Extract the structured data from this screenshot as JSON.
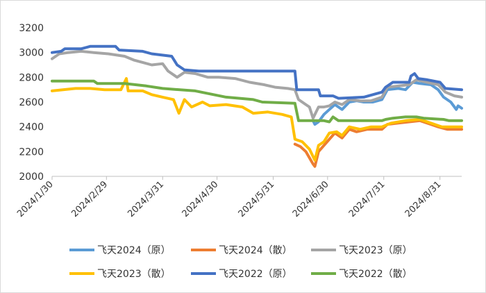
{
  "chart_data": {
    "type": "line",
    "title": "",
    "xlabel": "",
    "ylabel": "",
    "ylim": [
      2000,
      3200
    ],
    "y_ticks": [
      2000,
      2200,
      2400,
      2600,
      2800,
      3000,
      3200
    ],
    "x_ticks": [
      "2024/1/30",
      "2024/2/29",
      "2024/3/31",
      "2024/4/30",
      "2024/5/31",
      "2024/6/30",
      "2024/7/31",
      "2024/8/31"
    ],
    "x_range": [
      "2024/1/30",
      "2024/9/12"
    ],
    "grid": "none",
    "legend_position": "bottom",
    "series": [
      {
        "name": "飞天2024（原）",
        "color": "#5b9bd5",
        "points": [
          [
            "2024/6/22",
            2450
          ],
          [
            "2024/6/23",
            2420
          ],
          [
            "2024/6/25",
            2440
          ],
          [
            "2024/6/28",
            2500
          ],
          [
            "2024/7/1",
            2540
          ],
          [
            "2024/7/4",
            2580
          ],
          [
            "2024/7/8",
            2540
          ],
          [
            "2024/7/12",
            2600
          ],
          [
            "2024/7/16",
            2610
          ],
          [
            "2024/7/20",
            2600
          ],
          [
            "2024/7/25",
            2600
          ],
          [
            "2024/7/30",
            2620
          ],
          [
            "2024/8/2",
            2700
          ],
          [
            "2024/8/8",
            2710
          ],
          [
            "2024/8/12",
            2700
          ],
          [
            "2024/8/16",
            2760
          ],
          [
            "2024/8/20",
            2750
          ],
          [
            "2024/8/26",
            2740
          ],
          [
            "2024/8/30",
            2700
          ],
          [
            "2024/9/2",
            2640
          ],
          [
            "2024/9/6",
            2600
          ],
          [
            "2024/9/9",
            2540
          ],
          [
            "2024/9/10",
            2570
          ],
          [
            "2024/9/12",
            2550
          ]
        ]
      },
      {
        "name": "飞天2024（散）",
        "color": "#ed7d31",
        "points": [
          [
            "2024/6/12",
            2260
          ],
          [
            "2024/6/15",
            2240
          ],
          [
            "2024/6/18",
            2200
          ],
          [
            "2024/6/20",
            2150
          ],
          [
            "2024/6/22",
            2100
          ],
          [
            "2024/6/23",
            2080
          ],
          [
            "2024/6/25",
            2200
          ],
          [
            "2024/6/28",
            2250
          ],
          [
            "2024/7/1",
            2300
          ],
          [
            "2024/7/4",
            2350
          ],
          [
            "2024/7/8",
            2310
          ],
          [
            "2024/7/12",
            2380
          ],
          [
            "2024/7/16",
            2360
          ],
          [
            "2024/7/22",
            2380
          ],
          [
            "2024/7/30",
            2380
          ],
          [
            "2024/8/2",
            2420
          ],
          [
            "2024/8/8",
            2430
          ],
          [
            "2024/8/14",
            2440
          ],
          [
            "2024/8/20",
            2450
          ],
          [
            "2024/8/26",
            2420
          ],
          [
            "2024/8/30",
            2400
          ],
          [
            "2024/9/4",
            2380
          ],
          [
            "2024/9/10",
            2380
          ],
          [
            "2024/9/12",
            2380
          ]
        ]
      },
      {
        "name": "飞天2023（原）",
        "color": "#a5a5a5",
        "points": [
          [
            "2024/1/30",
            2950
          ],
          [
            "2024/2/3",
            2990
          ],
          [
            "2024/2/8",
            3000
          ],
          [
            "2024/2/15",
            3010
          ],
          [
            "2024/2/22",
            3000
          ],
          [
            "2024/3/1",
            2990
          ],
          [
            "2024/3/10",
            2970
          ],
          [
            "2024/3/15",
            2940
          ],
          [
            "2024/3/20",
            2920
          ],
          [
            "2024/3/25",
            2900
          ],
          [
            "2024/3/31",
            2910
          ],
          [
            "2024/4/3",
            2850
          ],
          [
            "2024/4/8",
            2800
          ],
          [
            "2024/4/12",
            2840
          ],
          [
            "2024/4/18",
            2830
          ],
          [
            "2024/4/25",
            2800
          ],
          [
            "2024/5/1",
            2800
          ],
          [
            "2024/5/10",
            2790
          ],
          [
            "2024/5/18",
            2760
          ],
          [
            "2024/5/26",
            2740
          ],
          [
            "2024/6/1",
            2720
          ],
          [
            "2024/6/8",
            2710
          ],
          [
            "2024/6/12",
            2700
          ],
          [
            "2024/6/14",
            2620
          ],
          [
            "2024/6/18",
            2580
          ],
          [
            "2024/6/20",
            2560
          ],
          [
            "2024/6/22",
            2470
          ],
          [
            "2024/6/25",
            2560
          ],
          [
            "2024/6/28",
            2560
          ],
          [
            "2024/7/1",
            2570
          ],
          [
            "2024/7/4",
            2600
          ],
          [
            "2024/7/8",
            2580
          ],
          [
            "2024/7/12",
            2620
          ],
          [
            "2024/7/18",
            2610
          ],
          [
            "2024/7/24",
            2610
          ],
          [
            "2024/7/30",
            2640
          ],
          [
            "2024/8/2",
            2720
          ],
          [
            "2024/8/8",
            2730
          ],
          [
            "2024/8/14",
            2740
          ],
          [
            "2024/8/18",
            2780
          ],
          [
            "2024/8/24",
            2760
          ],
          [
            "2024/8/30",
            2740
          ],
          [
            "2024/9/3",
            2680
          ],
          [
            "2024/9/8",
            2650
          ],
          [
            "2024/9/12",
            2640
          ]
        ]
      },
      {
        "name": "飞天2023（散）",
        "color": "#ffc000",
        "points": [
          [
            "2024/1/30",
            2690
          ],
          [
            "2024/2/5",
            2700
          ],
          [
            "2024/2/12",
            2710
          ],
          [
            "2024/2/20",
            2710
          ],
          [
            "2024/2/28",
            2700
          ],
          [
            "2024/3/8",
            2700
          ],
          [
            "2024/3/11",
            2790
          ],
          [
            "2024/3/12",
            2690
          ],
          [
            "2024/3/20",
            2690
          ],
          [
            "2024/3/25",
            2660
          ],
          [
            "2024/3/31",
            2640
          ],
          [
            "2024/4/6",
            2620
          ],
          [
            "2024/4/9",
            2510
          ],
          [
            "2024/4/12",
            2620
          ],
          [
            "2024/4/16",
            2560
          ],
          [
            "2024/4/22",
            2600
          ],
          [
            "2024/4/26",
            2570
          ],
          [
            "2024/5/5",
            2580
          ],
          [
            "2024/5/14",
            2560
          ],
          [
            "2024/5/20",
            2510
          ],
          [
            "2024/5/28",
            2520
          ],
          [
            "2024/6/5",
            2500
          ],
          [
            "2024/6/10",
            2480
          ],
          [
            "2024/6/12",
            2300
          ],
          [
            "2024/6/16",
            2280
          ],
          [
            "2024/6/20",
            2220
          ],
          [
            "2024/6/23",
            2130
          ],
          [
            "2024/6/25",
            2250
          ],
          [
            "2024/6/28",
            2280
          ],
          [
            "2024/7/1",
            2350
          ],
          [
            "2024/7/5",
            2360
          ],
          [
            "2024/7/8",
            2330
          ],
          [
            "2024/7/12",
            2400
          ],
          [
            "2024/7/18",
            2380
          ],
          [
            "2024/7/24",
            2400
          ],
          [
            "2024/7/30",
            2400
          ],
          [
            "2024/8/4",
            2430
          ],
          [
            "2024/8/12",
            2450
          ],
          [
            "2024/8/20",
            2460
          ],
          [
            "2024/8/26",
            2430
          ],
          [
            "2024/9/1",
            2400
          ],
          [
            "2024/9/8",
            2400
          ],
          [
            "2024/9/12",
            2400
          ]
        ]
      },
      {
        "name": "飞天2022（原）",
        "color": "#4472c4",
        "points": [
          [
            "2024/1/30",
            3000
          ],
          [
            "2024/2/4",
            3010
          ],
          [
            "2024/2/6",
            3030
          ],
          [
            "2024/2/15",
            3030
          ],
          [
            "2024/2/20",
            3050
          ],
          [
            "2024/3/5",
            3050
          ],
          [
            "2024/3/7",
            3020
          ],
          [
            "2024/3/20",
            3010
          ],
          [
            "2024/3/25",
            2990
          ],
          [
            "2024/4/5",
            2970
          ],
          [
            "2024/4/8",
            2900
          ],
          [
            "2024/4/12",
            2860
          ],
          [
            "2024/4/20",
            2850
          ],
          [
            "2024/5/1",
            2850
          ],
          [
            "2024/5/20",
            2850
          ],
          [
            "2024/6/12",
            2850
          ],
          [
            "2024/6/13",
            2700
          ],
          [
            "2024/6/25",
            2700
          ],
          [
            "2024/6/26",
            2650
          ],
          [
            "2024/7/3",
            2650
          ],
          [
            "2024/7/6",
            2630
          ],
          [
            "2024/7/20",
            2640
          ],
          [
            "2024/7/30",
            2680
          ],
          [
            "2024/8/1",
            2720
          ],
          [
            "2024/8/5",
            2760
          ],
          [
            "2024/8/14",
            2760
          ],
          [
            "2024/8/15",
            2810
          ],
          [
            "2024/8/17",
            2830
          ],
          [
            "2024/8/19",
            2790
          ],
          [
            "2024/8/24",
            2780
          ],
          [
            "2024/8/31",
            2760
          ],
          [
            "2024/9/3",
            2710
          ],
          [
            "2024/9/12",
            2700
          ]
        ]
      },
      {
        "name": "飞天2022（散）",
        "color": "#70ad47",
        "points": [
          [
            "2024/1/30",
            2770
          ],
          [
            "2024/2/22",
            2770
          ],
          [
            "2024/2/24",
            2750
          ],
          [
            "2024/3/10",
            2750
          ],
          [
            "2024/3/22",
            2730
          ],
          [
            "2024/3/31",
            2710
          ],
          [
            "2024/4/18",
            2690
          ],
          [
            "2024/5/5",
            2640
          ],
          [
            "2024/5/20",
            2620
          ],
          [
            "2024/5/25",
            2600
          ],
          [
            "2024/6/12",
            2590
          ],
          [
            "2024/6/14",
            2450
          ],
          [
            "2024/6/28",
            2450
          ],
          [
            "2024/7/1",
            2440
          ],
          [
            "2024/7/3",
            2480
          ],
          [
            "2024/7/6",
            2450
          ],
          [
            "2024/7/30",
            2450
          ],
          [
            "2024/8/1",
            2460
          ],
          [
            "2024/8/5",
            2470
          ],
          [
            "2024/8/12",
            2480
          ],
          [
            "2024/8/18",
            2480
          ],
          [
            "2024/8/22",
            2470
          ],
          [
            "2024/9/2",
            2460
          ],
          [
            "2024/9/5",
            2450
          ],
          [
            "2024/9/12",
            2450
          ]
        ]
      }
    ]
  }
}
